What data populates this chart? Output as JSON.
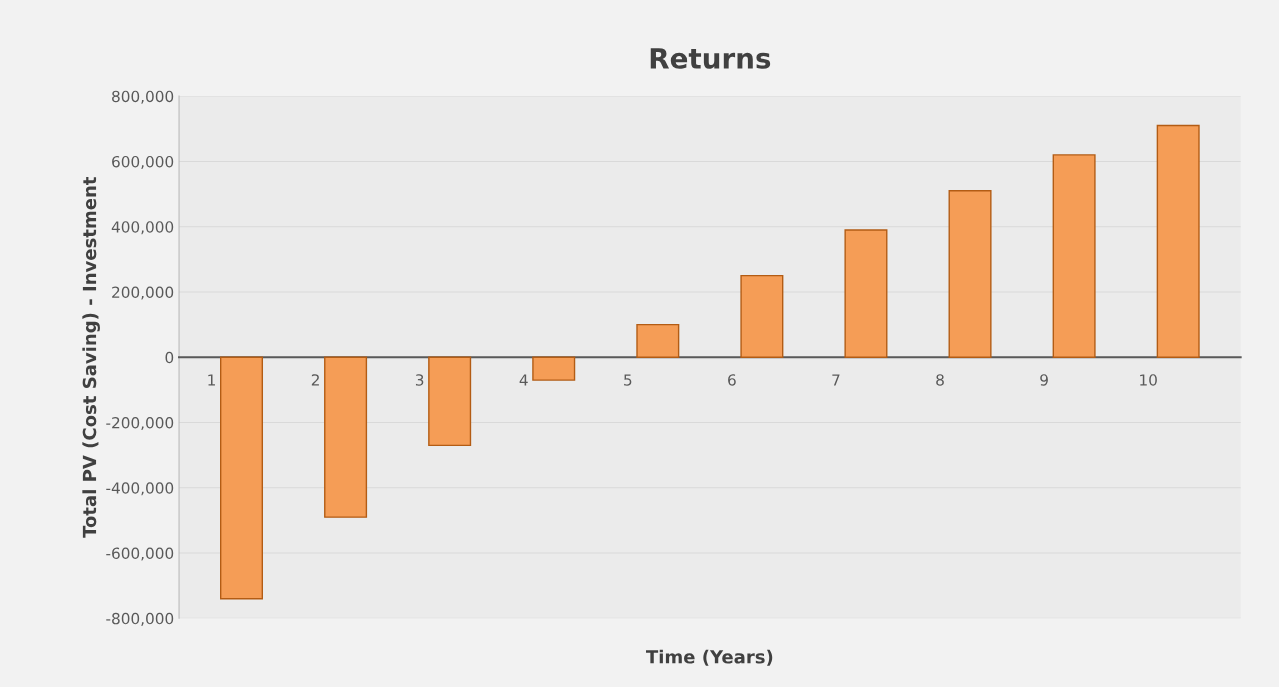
{
  "chart_data": {
    "type": "bar",
    "title": "Returns",
    "xlabel": "Time (Years)",
    "ylabel": "Total PV (Cost Saving) - Investment",
    "categories": [
      "1",
      "2",
      "3",
      "4",
      "5",
      "6",
      "7",
      "8",
      "9",
      "10"
    ],
    "values": [
      -740000,
      -490000,
      -270000,
      -70000,
      100000,
      250000,
      390000,
      510000,
      620000,
      710000
    ],
    "color": "#f59d56",
    "ylim": [
      -800000,
      800000
    ],
    "yticks": [
      {
        "value": -800000,
        "label": "-800,000"
      },
      {
        "value": -600000,
        "label": "-600,000"
      },
      {
        "value": -400000,
        "label": "-400,000"
      },
      {
        "value": -200000,
        "label": "-200,000"
      },
      0,
      {
        "value": 200000,
        "label": "200,000"
      },
      {
        "value": 400000,
        "label": "400,000"
      },
      {
        "value": 600000,
        "label": "600,000"
      },
      {
        "value": 800000,
        "label": "800,000"
      }
    ],
    "grid": "y",
    "legend": false
  }
}
